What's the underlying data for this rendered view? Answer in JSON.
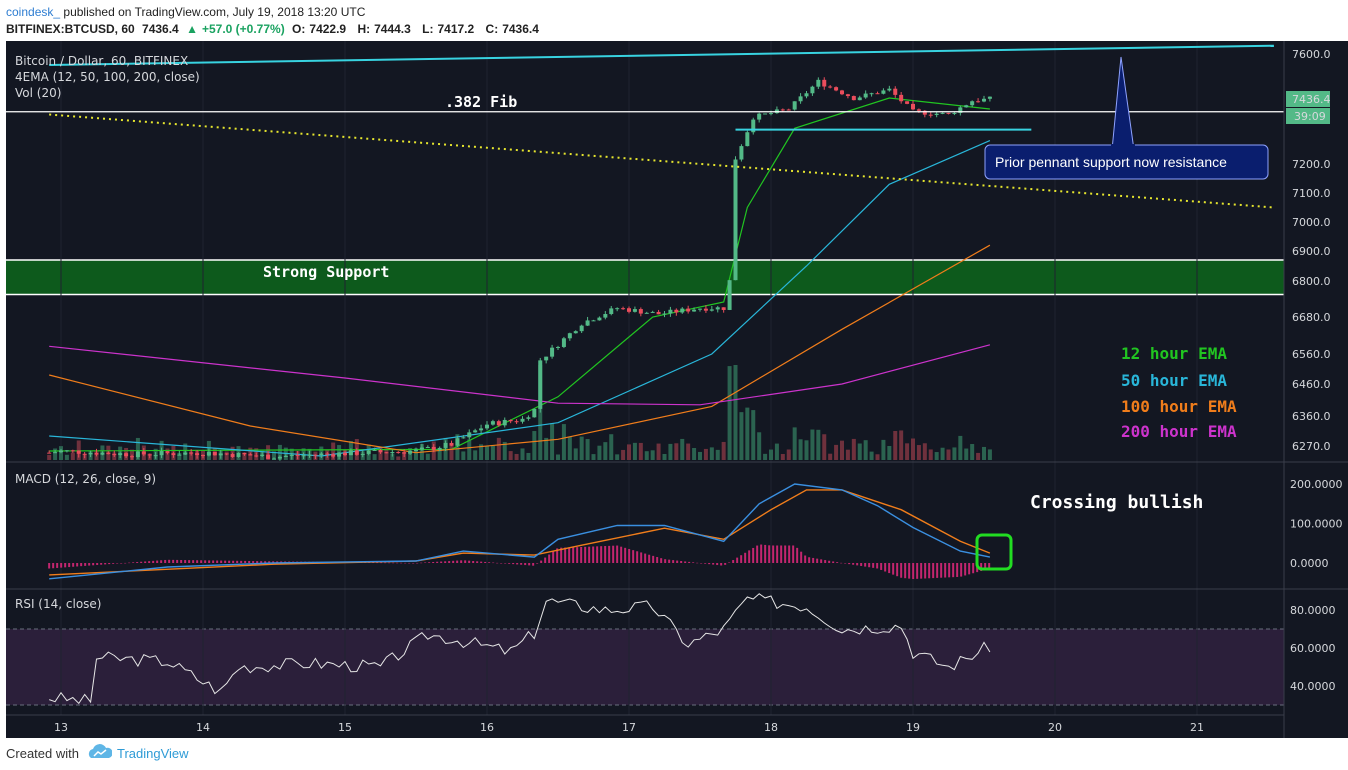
{
  "header": {
    "author": "coindesk_",
    "published": "published on TradingView.com, July 19, 2018 13:20 UTC",
    "symbol": "BITFINEX:BTCUSD, 60",
    "last": "7436.4",
    "change": "+57.0 (+0.77%)",
    "o_label": "O:",
    "o": "7422.9",
    "h_label": "H:",
    "h": "7444.3",
    "l_label": "L:",
    "l": "7417.2",
    "c_label": "C:",
    "c": "7436.4"
  },
  "footer": {
    "created_with": "Created with",
    "brand": "TradingView"
  },
  "colors": {
    "background": "#131722",
    "up": "#53b987",
    "down": "#eb4d5c",
    "ema12": "#21c521",
    "ema50": "#29b6d9",
    "ema100": "#f07d1b",
    "ema200": "#cc33cc",
    "trendline": "#38d3e0",
    "fib": "#ffffff",
    "dotted": "#e6e62e",
    "support_zone": "#0d5a1c",
    "rsi_band": "#2b1f3a",
    "callout": "#0a1e6e"
  },
  "chart_data": [
    {
      "type": "candlestick",
      "title": "Bitcoin / Dollar, 60, BITFINEX",
      "indicators": [
        "4EMA (12, 50, 100, 200, close)",
        "Vol (20)"
      ],
      "x_ticks": [
        "13",
        "14",
        "15",
        "16",
        "17",
        "18",
        "19",
        "20",
        "21"
      ],
      "x_range": [
        "2018-07-12 22:00",
        "2018-07-21 13:00"
      ],
      "y_ticks": [
        "7600.0",
        "7200.0",
        "7100.0",
        "7000.0",
        "6900.0",
        "6800.0",
        "6680.0",
        "6560.0",
        "6460.0",
        "6360.0",
        "6270.0"
      ],
      "y_range": [
        6230,
        7630
      ],
      "price_label": "7436.4",
      "countdown_label": "39:09",
      "close_path": [
        [
          "2018-07-12 22:00",
          6250
        ],
        [
          "2018-07-13 00:00",
          6255
        ],
        [
          "2018-07-13 12:00",
          6245
        ],
        [
          "2018-07-14 00:00",
          6250
        ],
        [
          "2018-07-14 12:00",
          6238
        ],
        [
          "2018-07-15 00:00",
          6248
        ],
        [
          "2018-07-15 12:00",
          6255
        ],
        [
          "2018-07-15 18:00",
          6275
        ],
        [
          "2018-07-16 00:00",
          6335
        ],
        [
          "2018-07-16 06:00",
          6350
        ],
        [
          "2018-07-16 08:00",
          6380
        ],
        [
          "2018-07-16 09:00",
          6540
        ],
        [
          "2018-07-16 16:00",
          6660
        ],
        [
          "2018-07-16 22:00",
          6710
        ],
        [
          "2018-07-17 05:00",
          6690
        ],
        [
          "2018-07-17 12:00",
          6710
        ],
        [
          "2018-07-17 16:00",
          6710
        ],
        [
          "2018-07-17 17:00",
          6800
        ],
        [
          "2018-07-17 18:00",
          7220
        ],
        [
          "2018-07-17 21:00",
          7370
        ],
        [
          "2018-07-18 03:00",
          7400
        ],
        [
          "2018-07-18 08:00",
          7500
        ],
        [
          "2018-07-18 14:00",
          7440
        ],
        [
          "2018-07-18 20:00",
          7470
        ],
        [
          "2018-07-19 00:00",
          7390
        ],
        [
          "2018-07-19 06:00",
          7380
        ],
        [
          "2018-07-19 10:00",
          7430
        ],
        [
          "2018-07-19 13:00",
          7436.4
        ]
      ],
      "ema_series": [
        {
          "name": "12 hour EMA",
          "values": [
            [
              "2018-07-12 22:00",
              6255
            ],
            [
              "2018-07-15 18:00",
              6260
            ],
            [
              "2018-07-16 12:00",
              6420
            ],
            [
              "2018-07-17 04:00",
              6680
            ],
            [
              "2018-07-17 16:00",
              6730
            ],
            [
              "2018-07-17 20:00",
              7050
            ],
            [
              "2018-07-18 04:00",
              7330
            ],
            [
              "2018-07-18 20:00",
              7440
            ],
            [
              "2018-07-19 13:00",
              7400
            ]
          ]
        },
        {
          "name": "50 hour EMA",
          "values": [
            [
              "2018-07-12 22:00",
              6300
            ],
            [
              "2018-07-14 20:00",
              6240
            ],
            [
              "2018-07-16 12:00",
              6340
            ],
            [
              "2018-07-17 14:00",
              6560
            ],
            [
              "2018-07-18 06:00",
              6850
            ],
            [
              "2018-07-18 20:00",
              7130
            ],
            [
              "2018-07-19 13:00",
              7285
            ]
          ]
        },
        {
          "name": "100 hour EMA",
          "values": [
            [
              "2018-07-12 22:00",
              6490
            ],
            [
              "2018-07-14 08:00",
              6330
            ],
            [
              "2018-07-15 12:00",
              6250
            ],
            [
              "2018-07-16 12:00",
              6290
            ],
            [
              "2018-07-17 14:00",
              6390
            ],
            [
              "2018-07-18 12:00",
              6640
            ],
            [
              "2018-07-19 13:00",
              6920
            ]
          ]
        },
        {
          "name": "200 hour EMA",
          "values": [
            [
              "2018-07-12 22:00",
              6585
            ],
            [
              "2018-07-15 00:00",
              6480
            ],
            [
              "2018-07-16 12:00",
              6400
            ],
            [
              "2018-07-17 12:00",
              6395
            ],
            [
              "2018-07-18 12:00",
              6460
            ],
            [
              "2018-07-19 13:00",
              6590
            ]
          ]
        }
      ],
      "legend": [
        "12 hour EMA",
        "50 hour EMA",
        "100 hour EMA",
        "200 hour EMA"
      ],
      "annotations": {
        "fib_label": ".382 Fib",
        "fib_level": 7390,
        "support_label": "Strong Support",
        "support_zone": [
          6755,
          6870
        ],
        "callout": "Prior pennant support now resistance",
        "resistance_line": [
          [
            "2018-07-17 18:00",
            7325
          ],
          [
            "2018-07-19 20:00",
            7325
          ]
        ],
        "upper_trendline": [
          [
            "2018-07-12 22:00",
            7560
          ],
          [
            "2018-07-21 13:00",
            7630
          ]
        ],
        "dotted_trendline": [
          [
            "2018-07-12 22:00",
            7380
          ],
          [
            "2018-07-21 13:00",
            7050
          ]
        ]
      }
    },
    {
      "type": "line",
      "title": "MACD (12, 26, close, 9)",
      "y_ticks": [
        "200.0000",
        "100.0000",
        "0.0000"
      ],
      "y_range": [
        -40,
        225
      ],
      "annotation": "Crossing bullish",
      "series": [
        {
          "name": "MACD",
          "values": [
            [
              "2018-07-12 22:00",
              -40
            ],
            [
              "2018-07-13 18:00",
              -10
            ],
            [
              "2018-07-14 12:00",
              0
            ],
            [
              "2018-07-15 12:00",
              5
            ],
            [
              "2018-07-15 20:00",
              30
            ],
            [
              "2018-07-16 08:00",
              15
            ],
            [
              "2018-07-16 12:00",
              60
            ],
            [
              "2018-07-16 22:00",
              95
            ],
            [
              "2018-07-17 06:00",
              95
            ],
            [
              "2018-07-17 16:00",
              55
            ],
            [
              "2018-07-17 22:00",
              150
            ],
            [
              "2018-07-18 04:00",
              200
            ],
            [
              "2018-07-18 12:00",
              185
            ],
            [
              "2018-07-18 18:00",
              145
            ],
            [
              "2018-07-19 00:00",
              90
            ],
            [
              "2018-07-19 08:00",
              30
            ],
            [
              "2018-07-19 13:00",
              15
            ]
          ]
        },
        {
          "name": "Signal",
          "values": [
            [
              "2018-07-12 22:00",
              -30
            ],
            [
              "2018-07-14 12:00",
              -3
            ],
            [
              "2018-07-15 12:00",
              5
            ],
            [
              "2018-07-15 20:00",
              25
            ],
            [
              "2018-07-16 08:00",
              20
            ],
            [
              "2018-07-16 16:00",
              45
            ],
            [
              "2018-07-17 06:00",
              88
            ],
            [
              "2018-07-17 16:00",
              60
            ],
            [
              "2018-07-18 00:00",
              135
            ],
            [
              "2018-07-18 06:00",
              185
            ],
            [
              "2018-07-18 12:00",
              185
            ],
            [
              "2018-07-18 22:00",
              135
            ],
            [
              "2018-07-19 08:00",
              55
            ],
            [
              "2018-07-19 13:00",
              25
            ]
          ]
        }
      ]
    },
    {
      "type": "line",
      "title": "RSI (14, close)",
      "y_ticks": [
        "80.0000",
        "60.0000",
        "40.0000"
      ],
      "y_range": [
        25,
        95
      ],
      "bands": [
        30,
        70
      ],
      "series": [
        {
          "name": "RSI",
          "values": [
            [
              "2018-07-12 22:00",
              34
            ],
            [
              "2018-07-13 05:00",
              32
            ],
            [
              "2018-07-13 06:00",
              55
            ],
            [
              "2018-07-13 18:00",
              53
            ],
            [
              "2018-07-14 03:00",
              37
            ],
            [
              "2018-07-14 06:00",
              50
            ],
            [
              "2018-07-14 18:00",
              52
            ],
            [
              "2018-07-15 06:00",
              50
            ],
            [
              "2018-07-15 14:00",
              67
            ],
            [
              "2018-07-15 18:00",
              65
            ],
            [
              "2018-07-16 04:00",
              58
            ],
            [
              "2018-07-16 08:00",
              68
            ],
            [
              "2018-07-16 10:00",
              85
            ],
            [
              "2018-07-16 20:00",
              80
            ],
            [
              "2018-07-17 04:00",
              82
            ],
            [
              "2018-07-17 10:00",
              62
            ],
            [
              "2018-07-17 16:00",
              70
            ],
            [
              "2018-07-17 20:00",
              86
            ],
            [
              "2018-07-18 06:00",
              82
            ],
            [
              "2018-07-18 12:00",
              70
            ],
            [
              "2018-07-18 22:00",
              72
            ],
            [
              "2018-07-19 00:00",
              58
            ],
            [
              "2018-07-19 06:00",
              50
            ],
            [
              "2018-07-19 13:00",
              61
            ]
          ]
        }
      ]
    }
  ]
}
